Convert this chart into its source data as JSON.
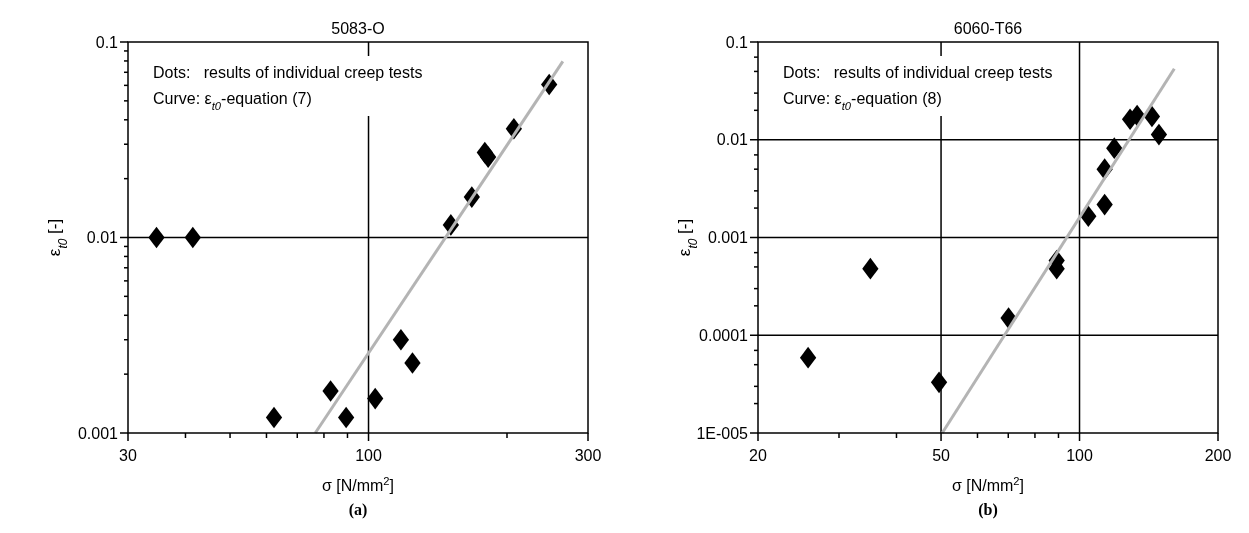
{
  "chart_data": [
    {
      "type": "scatter",
      "title": "5083-O",
      "xlabel": "σ [N/mm$^{2}$]",
      "ylabel": "ε$_{t0}$ [-]",
      "log": "xy",
      "grid": true,
      "xlim": [
        30,
        300
      ],
      "ylim": [
        0.001,
        0.1
      ],
      "xticks": [
        30,
        {
          "value": 40,
          "label": null
        },
        {
          "value": 50,
          "label": null
        },
        {
          "value": 60,
          "label": null
        },
        {
          "value": 70,
          "label": null
        },
        {
          "value": 80,
          "label": null
        },
        {
          "value": 90,
          "label": null
        },
        100,
        {
          "value": 200,
          "label": null
        },
        300
      ],
      "yticks": [
        0.001,
        {
          "value": 0.002,
          "label": null
        },
        {
          "value": 0.003,
          "label": null
        },
        {
          "value": 0.004,
          "label": null
        },
        {
          "value": 0.005,
          "label": null
        },
        {
          "value": 0.006,
          "label": null
        },
        {
          "value": 0.007,
          "label": null
        },
        {
          "value": 0.008,
          "label": null
        },
        {
          "value": 0.009,
          "label": null
        },
        0.01,
        {
          "value": 0.02,
          "label": null
        },
        {
          "value": 0.03,
          "label": null
        },
        {
          "value": 0.04,
          "label": null
        },
        {
          "value": 0.05,
          "label": null
        },
        {
          "value": 0.06,
          "label": null
        },
        {
          "value": 0.07,
          "label": null
        },
        {
          "value": 0.08,
          "label": null
        },
        {
          "value": 0.09,
          "label": null
        },
        0.1
      ],
      "annotations": [
        "Dots:   results of individual creep tests",
        "Curve: ε$_{t0}$-equation (7)",
        "(a)"
      ],
      "series": [
        {
          "marker": "diamond",
          "color": "#000000",
          "x": [
            34.6,
            41.5,
            62.3,
            82.7,
            89.4,
            103.4,
            117.6,
            124.6,
            151,
            167.7,
            179,
            182,
            207,
            247
          ],
          "values": [
            0.01,
            0.01,
            0.0012,
            0.00164,
            0.0012,
            0.0015,
            0.003,
            0.00228,
            0.0116,
            0.0161,
            0.0272,
            0.0258,
            0.036,
            0.0606
          ]
        },
        {
          "type": "line",
          "color": "#b4b4b4",
          "x": [
            76.6,
            264.5
          ],
          "values": [
            0.001,
            0.0796
          ]
        }
      ]
    },
    {
      "type": "scatter",
      "title": "6060-T66",
      "xlabel": "σ [N/mm$^{2}$]",
      "ylabel": "ε$_{t0}$ [-]",
      "log": "xy",
      "grid": true,
      "xlim": [
        20,
        200
      ],
      "ylim": [
        1e-05,
        0.1
      ],
      "xticks": [
        20,
        {
          "value": 30,
          "label": null
        },
        {
          "value": 40,
          "label": null
        },
        50,
        {
          "value": 60,
          "label": null
        },
        {
          "value": 70,
          "label": null
        },
        {
          "value": 80,
          "label": null
        },
        {
          "value": 90,
          "label": null
        },
        100,
        200
      ],
      "yticks": [
        {
          "value": 1e-05,
          "label": "1E-005"
        },
        {
          "value": 2e-05,
          "label": null
        },
        {
          "value": 3e-05,
          "label": null
        },
        {
          "value": 5e-05,
          "label": null
        },
        {
          "value": 7e-05,
          "label": null
        },
        0.0001,
        {
          "value": 0.0002,
          "label": null
        },
        {
          "value": 0.0003,
          "label": null
        },
        {
          "value": 0.0005,
          "label": null
        },
        {
          "value": 0.0007,
          "label": null
        },
        0.001,
        {
          "value": 0.002,
          "label": null
        },
        {
          "value": 0.003,
          "label": null
        },
        {
          "value": 0.005,
          "label": null
        },
        {
          "value": 0.007,
          "label": null
        },
        0.01,
        {
          "value": 0.02,
          "label": null
        },
        {
          "value": 0.03,
          "label": null
        },
        {
          "value": 0.05,
          "label": null
        },
        {
          "value": 0.07,
          "label": null
        },
        0.1
      ],
      "annotations": [
        "Dots:   results of individual creep tests",
        "Curve: ε$_{t0}$-equation (8)",
        "(b)"
      ],
      "series": [
        {
          "marker": "diamond",
          "color": "#000000",
          "x": [
            25.7,
            35.1,
            49.5,
            70.1,
            89.2,
            89.2,
            104.5,
            113.4,
            113.4,
            119,
            128.8,
            133.4,
            143.7,
            148.8
          ],
          "values": [
            5.9e-05,
            0.00048,
            3.3e-05,
            0.00015,
            0.00058,
            0.00048,
            0.00165,
            0.00217,
            0.005,
            0.0082,
            0.0162,
            0.0177,
            0.0173,
            0.0113
          ]
        },
        {
          "type": "line",
          "color": "#b4b4b4",
          "x": [
            50.3,
            160.7
          ],
          "values": [
            1e-05,
            0.0533
          ]
        }
      ]
    }
  ]
}
